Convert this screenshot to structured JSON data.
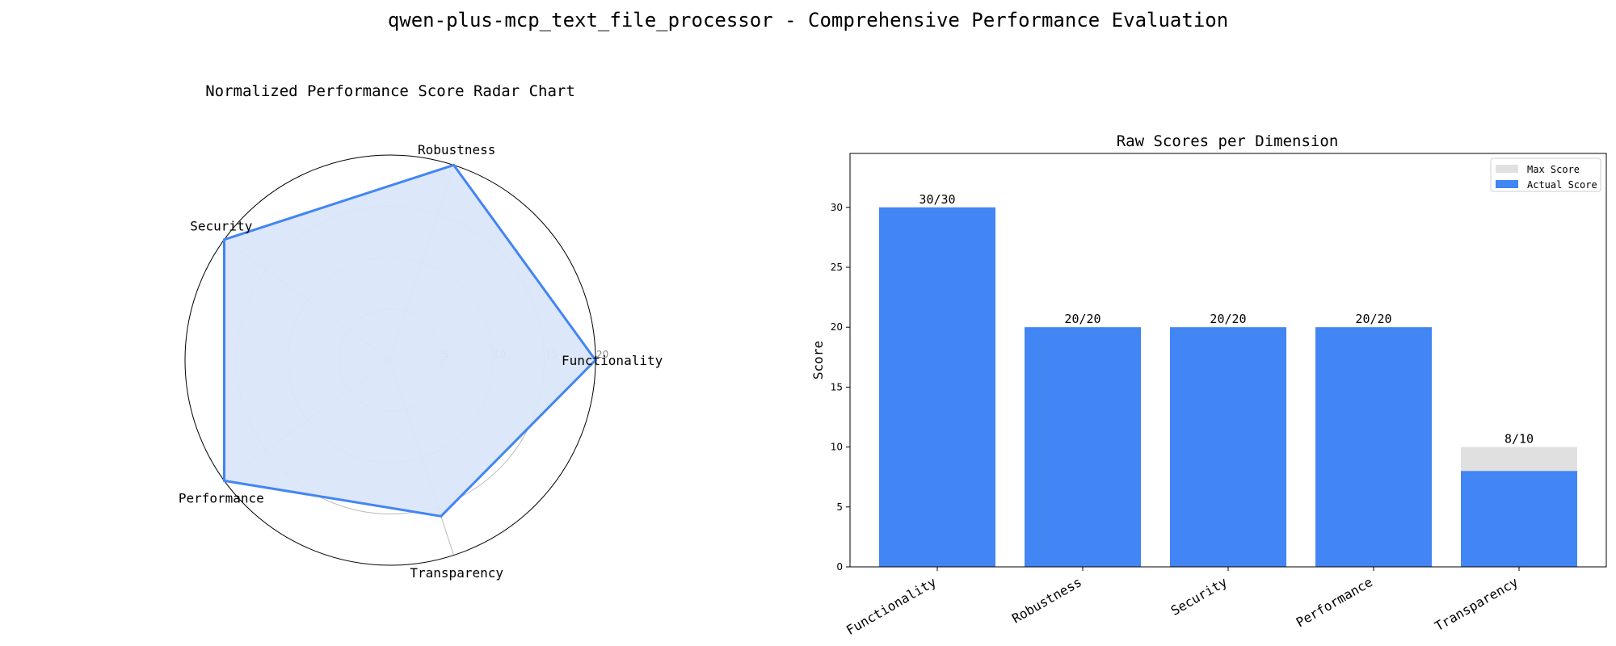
{
  "figure": {
    "title": "qwen-plus-mcp_text_file_processor - Comprehensive Performance Evaluation"
  },
  "colors": {
    "actual": "#4285f4",
    "max": "#e0e0e0",
    "radar_fill": "#dbe6fa",
    "grid": "#bbbbbb"
  },
  "chart_data": [
    {
      "type": "radar",
      "title": "Normalized Performance Score Radar Chart",
      "categories": [
        "Functionality",
        "Robustness",
        "Security",
        "Performance",
        "Transparency"
      ],
      "values": [
        20,
        20,
        20,
        20,
        16
      ],
      "rlim": [
        0,
        20
      ],
      "rticks": [
        5,
        10,
        15,
        20
      ],
      "grid": true,
      "legend": "none"
    },
    {
      "type": "bar",
      "title": "Raw Scores per Dimension",
      "categories": [
        "Functionality",
        "Robustness",
        "Security",
        "Performance",
        "Transparency"
      ],
      "series": [
        {
          "name": "Max Score",
          "values": [
            30,
            20,
            20,
            20,
            10
          ]
        },
        {
          "name": "Actual Score",
          "values": [
            30,
            20,
            20,
            20,
            8
          ]
        }
      ],
      "data_labels": [
        "30/30",
        "20/20",
        "20/20",
        "20/20",
        "8/10"
      ],
      "xlabel": "",
      "ylabel": "Score",
      "ylim": [
        0,
        34.5
      ],
      "yticks": [
        0,
        5,
        10,
        15,
        20,
        25,
        30
      ],
      "grid": false,
      "legend": "top-right"
    }
  ]
}
